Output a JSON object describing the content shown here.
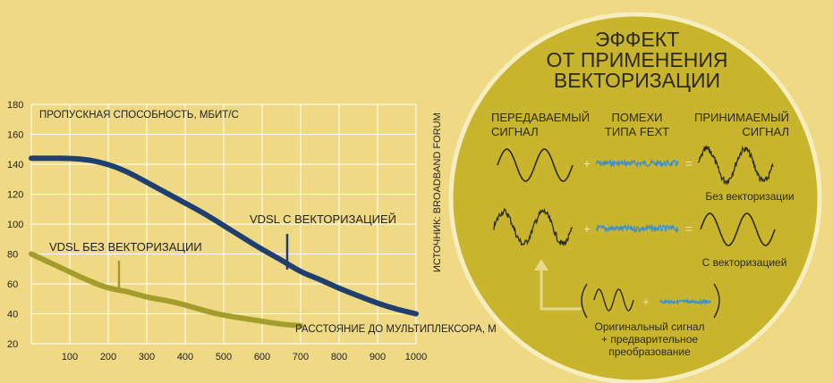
{
  "chart_data": {
    "type": "line",
    "ylabel": "ПРОПУСКНАЯ СПОСОБНОСТЬ, МБИТ/С",
    "xlabel": "РАССТОЯНИЕ ДО МУЛЬТИПЛЕКСОРА, М",
    "xlim": [
      0,
      1000
    ],
    "ylim": [
      20,
      180
    ],
    "x_ticks": [
      "100",
      "200",
      "300",
      "400",
      "500",
      "600",
      "700",
      "800",
      "900",
      "1000"
    ],
    "y_ticks": [
      "20",
      "40",
      "60",
      "80",
      "100",
      "120",
      "140",
      "160",
      "180"
    ],
    "grid": true,
    "series": [
      {
        "name": "VDSL С ВЕКТОРИЗАЦИЕЙ",
        "color": "#1f3f6e",
        "x": [
          0,
          50,
          100,
          150,
          200,
          250,
          300,
          350,
          400,
          450,
          500,
          550,
          600,
          650,
          700,
          750,
          800,
          850,
          900,
          950,
          1000
        ],
        "y": [
          144,
          144,
          144,
          143,
          140,
          135,
          128,
          121,
          114,
          107,
          99,
          91,
          83,
          76,
          68,
          63,
          57,
          52,
          47,
          43,
          40
        ]
      },
      {
        "name": "VDSL БЕЗ ВЕКТОРИЗАЦИИ",
        "color": "#a39d2b",
        "x": [
          0,
          50,
          100,
          150,
          200,
          250,
          300,
          350,
          400,
          450,
          500,
          550,
          600,
          650,
          700
        ],
        "y": [
          80,
          74,
          68,
          62,
          57,
          55,
          51,
          49,
          46,
          42,
          39,
          37,
          35,
          33,
          32
        ]
      }
    ]
  },
  "source_note": "ИСТОЧНИК: BROADBAND FORUM",
  "infographic": {
    "title": [
      "ЭФФЕКТ",
      "ОТ ПРИМЕНЕНИЯ",
      "ВЕКТОРИЗАЦИИ"
    ],
    "col_tx": [
      "ПЕРЕДАВАЕМЫЙ",
      "СИГНАЛ"
    ],
    "col_noise": [
      "ПОМЕХИ",
      "ТИПА FEXT"
    ],
    "col_rx": [
      "ПРИНИМАЕМЫЙ",
      "СИГНАЛ"
    ],
    "plus": "+",
    "equals": "=",
    "result_without": "Без векторизации",
    "result_with": "С векторизацией",
    "bottom_caption": [
      "Оригинальный сигнал",
      "+ предварительное",
      "преобразование"
    ]
  },
  "colors": {
    "background": "#efd985",
    "circle_fill": "#c9b42e",
    "circle_ring": "#f7eec0",
    "grid": "#ffffff",
    "axis_text": "#222222",
    "noise": "#3a8fd0",
    "arrow": "#e7d98a"
  }
}
